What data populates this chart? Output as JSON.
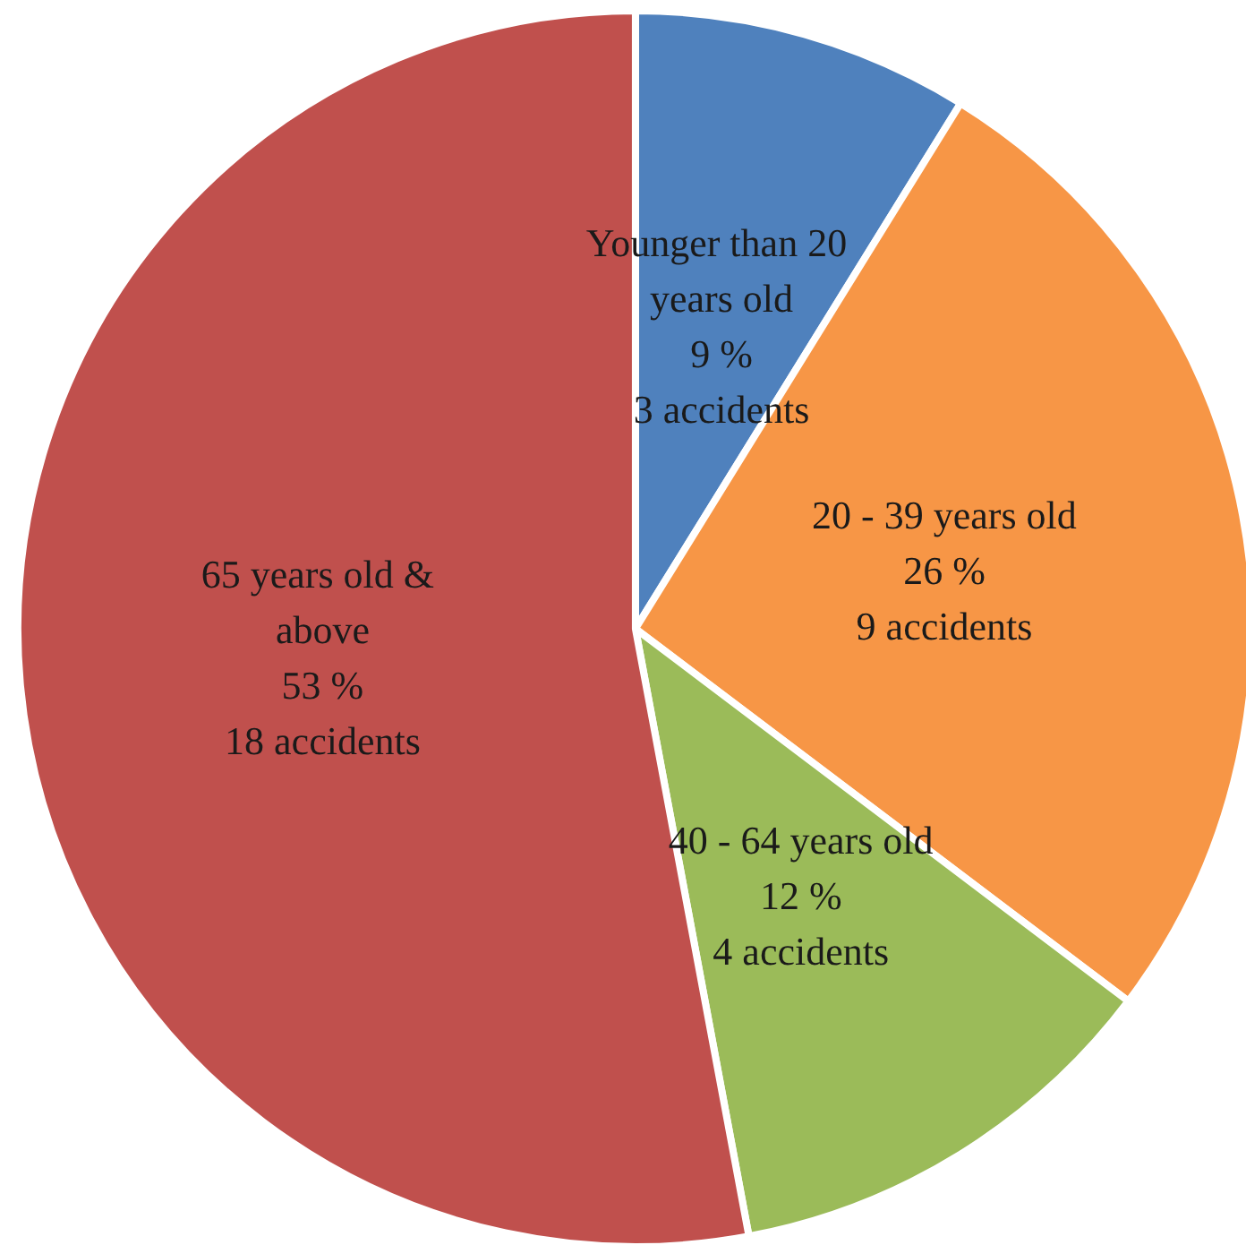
{
  "chart_data": {
    "type": "pie",
    "categories": [
      "Younger than 20 years old",
      "20 - 39 years old",
      "40 - 64 years old",
      "65 years old & above"
    ],
    "values": [
      3,
      9,
      4,
      18
    ],
    "colors": [
      "#4f81bd",
      "#f79646",
      "#9bbb59",
      "#c0504d"
    ],
    "value_labels": [
      "9 %\n3 accidents",
      "26 %\n9 accidents",
      "12 %\n4 accidents",
      "53 %\n18 accidents"
    ],
    "legend": false
  }
}
